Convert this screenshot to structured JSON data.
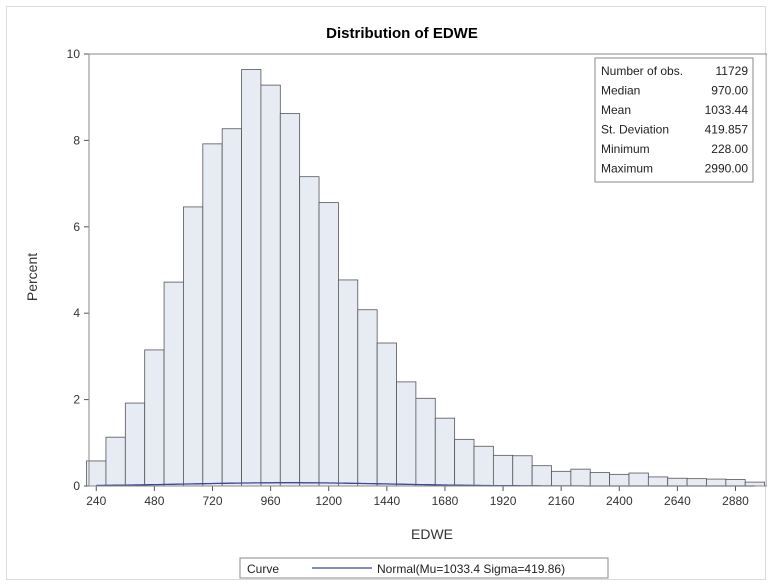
{
  "chart_data": {
    "type": "bar",
    "title": "Distribution of EDWE",
    "xlabel": "EDWE",
    "ylabel": "Percent",
    "xlim": [
      210,
      3010
    ],
    "ylim": [
      0,
      10
    ],
    "x_ticks": [
      240,
      480,
      720,
      960,
      1200,
      1440,
      1680,
      1920,
      2160,
      2400,
      2640,
      2880
    ],
    "y_ticks": [
      0,
      2,
      4,
      6,
      8,
      10
    ],
    "bin_width": 80,
    "bin_midpoints": [
      240,
      320,
      400,
      480,
      560,
      640,
      720,
      800,
      880,
      960,
      1040,
      1120,
      1200,
      1280,
      1360,
      1440,
      1520,
      1600,
      1680,
      1760,
      1840,
      1920,
      2000,
      2080,
      2160,
      2240,
      2320,
      2400,
      2480,
      2560,
      2640,
      2720,
      2800,
      2880,
      2960
    ],
    "values": [
      0.58,
      1.13,
      1.92,
      3.15,
      4.72,
      6.46,
      7.92,
      8.27,
      9.64,
      9.28,
      8.62,
      7.16,
      6.56,
      4.77,
      4.08,
      3.31,
      2.41,
      2.03,
      1.57,
      1.08,
      0.92,
      0.71,
      0.7,
      0.47,
      0.34,
      0.39,
      0.31,
      0.27,
      0.3,
      0.21,
      0.18,
      0.17,
      0.16,
      0.15,
      0.09
    ],
    "curve": {
      "name": "Normal(Mu=1033.4 Sigma=419.86)",
      "mu": 1033.44,
      "sigma": 419.857,
      "scale_percent_per_bin": 80
    },
    "stats": [
      {
        "label": "Number of obs.",
        "value": "11729"
      },
      {
        "label": "Median",
        "value": "970.00"
      },
      {
        "label": "Mean",
        "value": "1033.44"
      },
      {
        "label": "St. Deviation",
        "value": "419.857"
      },
      {
        "label": "Minimum",
        "value": "228.00"
      },
      {
        "label": "Maximum",
        "value": "2990.00"
      }
    ],
    "legend": {
      "title": "Curve",
      "entry": "Normal(Mu=1033.4 Sigma=419.86)",
      "placement": "bottom-center"
    },
    "grid": false,
    "colors": {
      "bar_fill": "#e7ebf4",
      "bar_stroke": "#555555",
      "curve": "#3a4b8c"
    }
  }
}
